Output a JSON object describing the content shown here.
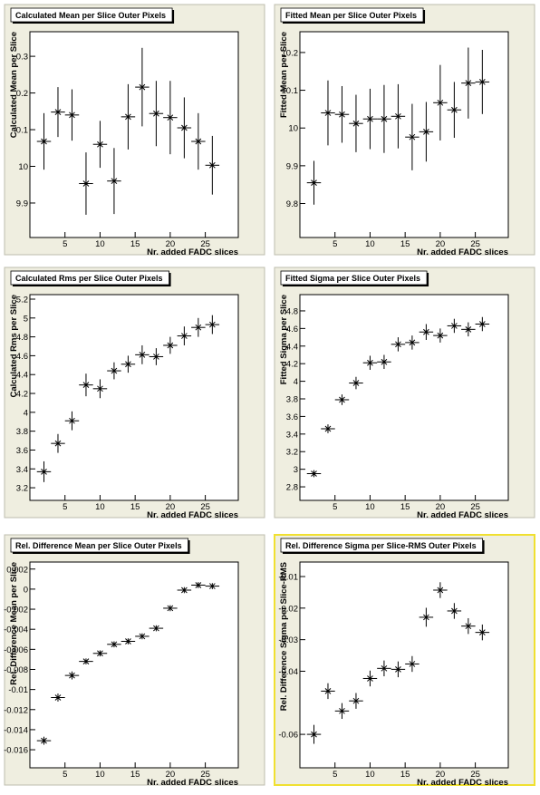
{
  "chart_data": [
    {
      "type": "errorbar",
      "title": "Calculated Mean per Slice Outer Pixels",
      "x_label": "Nr. added FADC slices",
      "y_label": "Calculated Mean per Slice",
      "x": [
        2,
        4,
        6,
        8,
        10,
        12,
        14,
        16,
        18,
        20,
        22,
        24,
        26
      ],
      "xerrors": [
        1,
        1,
        1,
        1,
        1,
        1,
        1,
        1,
        1,
        1,
        1,
        1,
        1
      ],
      "values": [
        10.068,
        10.148,
        10.14,
        9.953,
        10.06,
        9.96,
        10.135,
        10.216,
        10.144,
        10.133,
        10.105,
        10.068,
        10.003
      ],
      "errors": [
        0.077,
        0.068,
        0.07,
        0.085,
        0.064,
        0.09,
        0.089,
        0.107,
        0.089,
        0.1,
        0.083,
        0.077,
        0.08
      ],
      "xlim": [
        0,
        29.7
      ],
      "xticks": [
        5,
        10,
        15,
        20,
        25
      ],
      "ylim": [
        9.806,
        10.367
      ],
      "yticks": [
        {
          "value": 9.9,
          "label": "9.9"
        },
        10,
        {
          "value": 10.1,
          "label": "0.1"
        },
        {
          "value": 10.2,
          "label": "0.2"
        },
        {
          "value": 10.3,
          "label": "0.3"
        }
      ],
      "color": "#000000"
    },
    {
      "type": "errorbar",
      "title": "Fitted Mean per Slice Outer Pixels",
      "x_label": "Nr. added FADC slices",
      "y_label": "Fitted Mean per Slice",
      "x": [
        2,
        4,
        6,
        8,
        10,
        12,
        14,
        16,
        18,
        20,
        22,
        24,
        26
      ],
      "xerrors": [
        1,
        1,
        1,
        1,
        1,
        1,
        1,
        1,
        1,
        1,
        1,
        1,
        1
      ],
      "values": [
        9.855,
        10.04,
        10.036,
        10.012,
        10.024,
        10.024,
        10.031,
        9.976,
        9.99,
        10.067,
        10.048,
        10.119,
        10.122
      ],
      "errors": [
        0.058,
        0.086,
        0.075,
        0.076,
        0.08,
        0.09,
        0.085,
        0.088,
        0.079,
        0.1,
        0.074,
        0.094,
        0.085
      ],
      "xlim": [
        0,
        29.7
      ],
      "xticks": [
        5,
        10,
        15,
        20,
        25
      ],
      "ylim": [
        9.71,
        10.255
      ],
      "yticks": [
        9.8,
        9.9,
        10,
        10.1,
        10.2
      ],
      "color": "#000000"
    },
    {
      "type": "errorbar",
      "title": "Calculated Rms per Slice Outer Pixels",
      "x_label": "Nr. added FADC slices",
      "y_label": "Calculated Rms per Slice",
      "x": [
        2,
        4,
        6,
        8,
        10,
        12,
        14,
        16,
        18,
        20,
        22,
        24,
        26
      ],
      "xerrors": [
        1,
        1,
        1,
        1,
        1,
        1,
        1,
        1,
        1,
        1,
        1,
        1,
        1
      ],
      "values": [
        3.37,
        3.67,
        3.91,
        4.29,
        4.25,
        4.44,
        4.51,
        4.61,
        4.59,
        4.71,
        4.81,
        4.9,
        4.93
      ],
      "errors": [
        0.11,
        0.1,
        0.1,
        0.12,
        0.1,
        0.09,
        0.09,
        0.1,
        0.09,
        0.09,
        0.1,
        0.1,
        0.1
      ],
      "xlim": [
        0,
        29.7
      ],
      "xticks": [
        5,
        10,
        15,
        20,
        25
      ],
      "ylim": [
        3.066,
        5.248
      ],
      "yticks": [
        3.2,
        3.4,
        3.6,
        3.8,
        4,
        4.2,
        4.4,
        4.6,
        4.8,
        5,
        5.2
      ],
      "color": "#000000"
    },
    {
      "type": "errorbar",
      "title": "Fitted Sigma per Slice Outer Pixels",
      "x_label": "Nr. added FADC slices",
      "y_label": "Fitted Sigma per Slice",
      "x": [
        2,
        4,
        6,
        8,
        10,
        12,
        14,
        16,
        18,
        20,
        22,
        24,
        26
      ],
      "xerrors": [
        1,
        1,
        1,
        1,
        1,
        1,
        1,
        1,
        1,
        1,
        1,
        1,
        1
      ],
      "values": [
        2.95,
        3.46,
        3.79,
        3.98,
        4.21,
        4.22,
        4.42,
        4.44,
        4.56,
        4.52,
        4.63,
        4.59,
        4.65
      ],
      "errors": [
        0.04,
        0.05,
        0.06,
        0.07,
        0.08,
        0.08,
        0.08,
        0.08,
        0.09,
        0.08,
        0.08,
        0.08,
        0.08
      ],
      "xlim": [
        0,
        29.7
      ],
      "xticks": [
        5,
        10,
        15,
        20,
        25
      ],
      "ylim": [
        2.646,
        4.985
      ],
      "yticks": [
        2.8,
        3,
        3.2,
        3.4,
        3.6,
        3.8,
        4,
        4.2,
        4.4,
        4.6,
        4.8
      ],
      "color": "#000000"
    },
    {
      "type": "errorbar",
      "title": "Rel. Difference  Mean per Slice Outer Pixels",
      "x_label": "Nr. added FADC slices",
      "y_label": "Rel. Difference Mean per Slice",
      "x": [
        2,
        4,
        6,
        8,
        10,
        12,
        14,
        16,
        18,
        20,
        22,
        24,
        26
      ],
      "xerrors": [
        1,
        1,
        1,
        1,
        1,
        1,
        1,
        1,
        1,
        1,
        1,
        1,
        1
      ],
      "values": [
        -0.0151,
        -0.0108,
        -0.0086,
        -0.0072,
        -0.0064,
        -0.0055,
        -0.0052,
        -0.0047,
        -0.0039,
        -0.0019,
        -0.0001,
        0.0004,
        0.0003
      ],
      "errors": [
        0.0004,
        0.0004,
        0.0004,
        0.0003,
        0.0003,
        0.0003,
        0.0003,
        0.0003,
        0.0003,
        0.0003,
        0.0003,
        0.0003,
        0.0003
      ],
      "xlim": [
        0,
        29.7
      ],
      "xticks": [
        5,
        10,
        15,
        20,
        25
      ],
      "ylim": [
        -0.0178,
        0.0027
      ],
      "yticks": [
        -0.016,
        -0.014,
        -0.012,
        -0.01,
        -0.008,
        -0.006,
        -0.004,
        -0.002,
        0,
        0.002
      ],
      "color": "#000000"
    },
    {
      "type": "errorbar",
      "title": "Rel. Difference Sigma per Slice-RMS Outer Pixels",
      "x_label": "Nr. added FADC slices",
      "y_label": "Rel. Difference Sigma per Slice-RMS",
      "x": [
        2,
        4,
        6,
        8,
        10,
        12,
        14,
        16,
        18,
        20,
        22,
        24,
        26
      ],
      "xerrors": [
        1,
        1,
        1,
        1,
        1,
        1,
        1,
        1,
        1,
        1,
        1,
        1,
        1
      ],
      "values": [
        -0.06,
        -0.0463,
        -0.0526,
        -0.0494,
        -0.0423,
        -0.0391,
        -0.0394,
        -0.0377,
        -0.0229,
        -0.0143,
        -0.0209,
        -0.0257,
        -0.0277
      ],
      "errors": [
        0.003,
        0.0025,
        0.0025,
        0.0025,
        0.0025,
        0.0025,
        0.0025,
        0.0025,
        0.003,
        0.0025,
        0.0025,
        0.0025,
        0.0025
      ],
      "xlim": [
        0,
        29.7
      ],
      "xticks": [
        5,
        10,
        15,
        20,
        25
      ],
      "ylim": [
        -0.0706,
        -0.0054
      ],
      "yticks": [
        -0.06,
        -0.04,
        -0.03,
        -0.02,
        -0.01
      ],
      "color": "#000000",
      "highlight": "#f0e030"
    }
  ]
}
